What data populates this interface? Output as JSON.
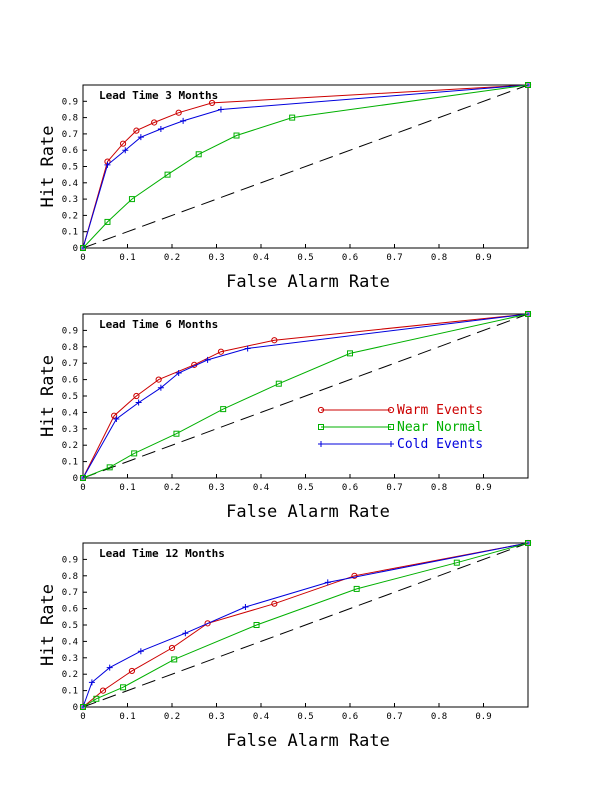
{
  "colors": {
    "warm": "#cc0000",
    "near": "#00b000",
    "cold": "#0000dd",
    "reference": "#000000"
  },
  "chart_data": [
    {
      "type": "line",
      "title": "Lead Time 3 Months",
      "xlabel": "False Alarm Rate",
      "ylabel": "Hit Rate",
      "xlim": [
        0,
        1
      ],
      "ylim": [
        0,
        1
      ],
      "xticks": [
        "0",
        "0.1",
        "0.2",
        "0.3",
        "0.4",
        "0.5",
        "0.6",
        "0.7",
        "0.8",
        "0.9"
      ],
      "yticks": [
        "0",
        "0.1",
        "0.2",
        "0.3",
        "0.4",
        "0.5",
        "0.6",
        "0.7",
        "0.8",
        "0.9"
      ],
      "grid": false,
      "reference_line": "diagonal dashed",
      "series": [
        {
          "key": "warm",
          "marker": "circle",
          "x": [
            0,
            0.055,
            0.09,
            0.12,
            0.16,
            0.215,
            0.29,
            1.0
          ],
          "y": [
            0,
            0.53,
            0.64,
            0.72,
            0.77,
            0.83,
            0.89,
            1.0
          ]
        },
        {
          "key": "cold",
          "marker": "plus",
          "x": [
            0,
            0.055,
            0.095,
            0.13,
            0.175,
            0.225,
            0.31,
            1.0
          ],
          "y": [
            0,
            0.51,
            0.6,
            0.68,
            0.73,
            0.78,
            0.85,
            1.0
          ]
        },
        {
          "key": "near",
          "marker": "square",
          "x": [
            0,
            0.055,
            0.11,
            0.19,
            0.26,
            0.345,
            0.47,
            1.0
          ],
          "y": [
            0,
            0.16,
            0.3,
            0.45,
            0.575,
            0.69,
            0.8,
            1.0
          ]
        }
      ]
    },
    {
      "type": "line",
      "title": "Lead Time 6 Months",
      "xlabel": "False Alarm Rate",
      "ylabel": "Hit Rate",
      "xlim": [
        0,
        1
      ],
      "ylim": [
        0,
        1
      ],
      "xticks": [
        "0",
        "0.1",
        "0.2",
        "0.3",
        "0.4",
        "0.5",
        "0.6",
        "0.7",
        "0.8",
        "0.9"
      ],
      "yticks": [
        "0",
        "0.1",
        "0.2",
        "0.3",
        "0.4",
        "0.5",
        "0.6",
        "0.7",
        "0.8",
        "0.9"
      ],
      "grid": false,
      "reference_line": "diagonal dashed",
      "legend": {
        "placement": "lower-right",
        "labels": [
          "Warm Events",
          "Near Normal",
          "Cold Events"
        ],
        "keys": [
          "warm",
          "near",
          "cold"
        ]
      },
      "series": [
        {
          "key": "warm",
          "marker": "circle",
          "x": [
            0,
            0.07,
            0.12,
            0.17,
            0.25,
            0.31,
            0.43,
            1.0
          ],
          "y": [
            0,
            0.38,
            0.5,
            0.6,
            0.69,
            0.77,
            0.84,
            1.0
          ]
        },
        {
          "key": "cold",
          "marker": "plus",
          "x": [
            0,
            0.075,
            0.125,
            0.175,
            0.215,
            0.28,
            0.37,
            1.0
          ],
          "y": [
            0,
            0.36,
            0.46,
            0.55,
            0.64,
            0.72,
            0.79,
            1.0
          ]
        },
        {
          "key": "near",
          "marker": "square",
          "x": [
            0,
            0.06,
            0.115,
            0.21,
            0.315,
            0.44,
            0.6,
            1.0
          ],
          "y": [
            0,
            0.065,
            0.15,
            0.27,
            0.42,
            0.575,
            0.76,
            1.0
          ]
        }
      ]
    },
    {
      "type": "line",
      "title": "Lead Time 12 Months",
      "xlabel": "False Alarm Rate",
      "ylabel": "Hit Rate",
      "xlim": [
        0,
        1
      ],
      "ylim": [
        0,
        1
      ],
      "xticks": [
        "0",
        "0.1",
        "0.2",
        "0.3",
        "0.4",
        "0.5",
        "0.6",
        "0.7",
        "0.8",
        "0.9"
      ],
      "yticks": [
        "0",
        "0.1",
        "0.2",
        "0.3",
        "0.4",
        "0.5",
        "0.6",
        "0.7",
        "0.8",
        "0.9"
      ],
      "grid": false,
      "reference_line": "diagonal dashed",
      "series": [
        {
          "key": "warm",
          "marker": "circle",
          "x": [
            0,
            0.045,
            0.11,
            0.2,
            0.28,
            0.43,
            0.61,
            1.0
          ],
          "y": [
            0,
            0.1,
            0.22,
            0.36,
            0.51,
            0.63,
            0.8,
            1.0
          ]
        },
        {
          "key": "cold",
          "marker": "plus",
          "x": [
            0,
            0.02,
            0.06,
            0.13,
            0.23,
            0.365,
            0.55,
            1.0
          ],
          "y": [
            0,
            0.15,
            0.24,
            0.34,
            0.45,
            0.61,
            0.76,
            1.0
          ]
        },
        {
          "key": "near",
          "marker": "square",
          "x": [
            0,
            0.03,
            0.09,
            0.205,
            0.39,
            0.615,
            0.84,
            1.0
          ],
          "y": [
            0,
            0.05,
            0.12,
            0.29,
            0.5,
            0.72,
            0.88,
            1.0
          ]
        }
      ]
    }
  ]
}
